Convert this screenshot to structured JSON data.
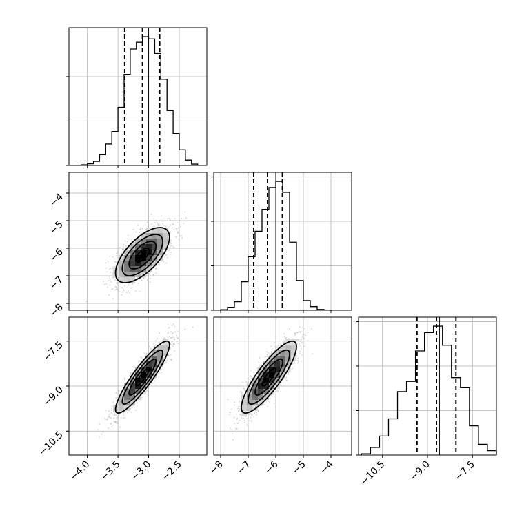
{
  "chart_data": {
    "type": "corner",
    "title": "",
    "parameters": [
      {
        "range": [
          -4.3,
          -2.05
        ],
        "ticks": [
          -4.0,
          -3.5,
          -3.0,
          -2.5
        ],
        "tick_labels": [
          "−4.0",
          "−3.5",
          "−3.0",
          "−2.5"
        ]
      },
      {
        "range": [
          -8.25,
          -3.25
        ],
        "ticks": [
          -8,
          -7,
          -6,
          -5,
          -4
        ],
        "tick_labels": [
          "−8",
          "−7",
          "−6",
          "−5",
          "−4"
        ]
      },
      {
        "range": [
          -11.3,
          -6.7
        ],
        "ticks": [
          -10.5,
          -9.0,
          -7.5
        ],
        "tick_labels": [
          "−10.5",
          "−9.0",
          "−7.5"
        ]
      }
    ],
    "truths": [
      -3.0,
      -6.0,
      -8.6
    ],
    "quantiles": [
      [
        -3.39,
        -3.1,
        -2.82
      ],
      [
        -6.8,
        -6.3,
        -5.76
      ],
      [
        -9.35,
        -8.7,
        -8.05
      ]
    ],
    "histograms": [
      {
        "bin_edges": [
          -4.2,
          -4.1,
          -4.0,
          -3.9,
          -3.8,
          -3.7,
          -3.6,
          -3.5,
          -3.4,
          -3.3,
          -3.2,
          -3.1,
          -3.0,
          -2.9,
          -2.8,
          -2.7,
          -2.6,
          -2.5,
          -2.4,
          -2.3,
          -2.2
        ],
        "counts": [
          1,
          6,
          15,
          36,
          96,
          191,
          304,
          520,
          810,
          1040,
          1100,
          1150,
          1130,
          1000,
          770,
          490,
          285,
          140,
          48,
          12
        ]
      },
      {
        "bin_edges": [
          -8.0,
          -7.75,
          -7.5,
          -7.25,
          -7.0,
          -6.75,
          -6.5,
          -6.25,
          -6.0,
          -5.75,
          -5.5,
          -5.25,
          -5.0,
          -4.75,
          -4.5,
          -4.25,
          -4.0
        ],
        "counts": [
          5,
          25,
          70,
          235,
          440,
          650,
          830,
          1010,
          1060,
          970,
          560,
          245,
          80,
          30,
          7,
          2
        ]
      },
      {
        "bin_edges": [
          -11.2,
          -10.9,
          -10.6,
          -10.3,
          -10.0,
          -9.7,
          -9.4,
          -9.1,
          -8.8,
          -8.5,
          -8.2,
          -7.9,
          -7.6,
          -7.3,
          -7.0,
          -6.7
        ],
        "counts": [
          10,
          60,
          150,
          285,
          500,
          580,
          820,
          965,
          1015,
          865,
          610,
          530,
          230,
          85,
          35
        ]
      }
    ],
    "pairs": [
      {
        "x_param": 0,
        "y_param": 1,
        "mean": [
          -3.1,
          -6.25
        ],
        "std": [
          0.22,
          0.5
        ],
        "corr": 0.65
      },
      {
        "x_param": 0,
        "y_param": 2,
        "mean": [
          -3.1,
          -8.7
        ],
        "std": [
          0.22,
          0.6
        ],
        "corr": 0.9
      },
      {
        "x_param": 1,
        "y_param": 2,
        "mean": [
          -6.25,
          -8.7
        ],
        "std": [
          0.5,
          0.6
        ],
        "corr": 0.85
      }
    ],
    "grid": true,
    "colors": {
      "lines": "#000000",
      "points": "#9a9a9a",
      "grid": "#b0b0b0"
    }
  }
}
